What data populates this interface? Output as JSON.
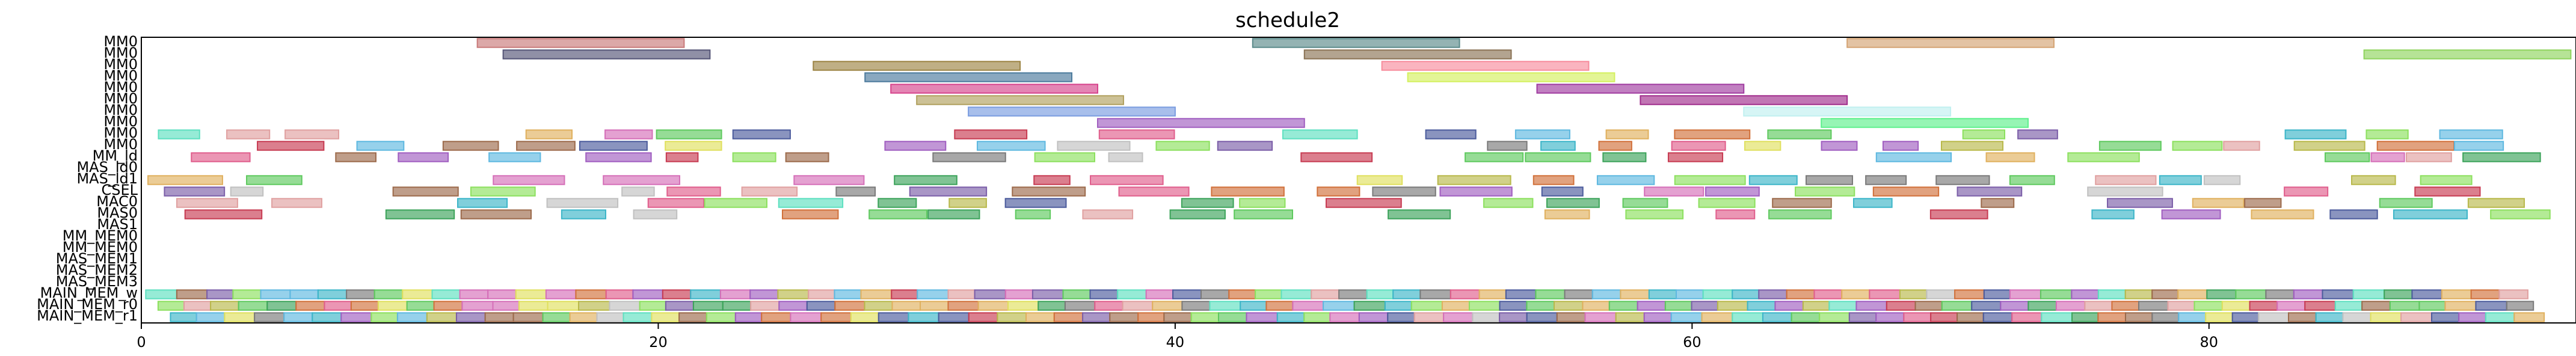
{
  "chart_data": {
    "type": "gantt",
    "title": "schedule2",
    "xlabel": "",
    "ylabel": "",
    "xlim": [
      0,
      94.2
    ],
    "xticks": [
      0,
      20,
      40,
      60,
      80
    ],
    "grid": false,
    "rows": [
      "MM0",
      "MM0",
      "MM0",
      "MM0",
      "MM0",
      "MM0",
      "MM0",
      "MM0",
      "MM0",
      "MM0",
      "MM_ld",
      "MAS_ld0",
      "MAS_ld1",
      "CSEL",
      "MAC0",
      "MAS0",
      "MAS1",
      "MM_MEM0",
      "MM_MEM0",
      "MAS_MEM1",
      "MAS_MEM2",
      "MAS_MEM3",
      "MAIN_MEM_w",
      "MAIN_MEM_r0",
      "MAIN_MEM_r1"
    ],
    "palette": [
      "#4b5b9c",
      "#d1703a",
      "#3ca35a",
      "#c73b52",
      "#7b5ea8",
      "#9c6a4b",
      "#d56fb8",
      "#7a7a7a",
      "#b8b84a",
      "#3cb5c8",
      "#5ec95e",
      "#e0e05e",
      "#5eb8e0",
      "#e05e8c",
      "#8ce05e",
      "#c0c0c0",
      "#e0b05e",
      "#a05ec0",
      "#5ee0c0",
      "#e0a0a0"
    ],
    "tasks": [
      {
        "row": 0,
        "start": 13,
        "end": 21,
        "color": "#c97a7a"
      },
      {
        "row": 0,
        "start": 43,
        "end": 51,
        "color": "#5a8a8a"
      },
      {
        "row": 0,
        "start": 66,
        "end": 74,
        "color": "#d4a373"
      },
      {
        "row": 1,
        "start": 14,
        "end": 22,
        "color": "#555577"
      },
      {
        "row": 1,
        "start": 45,
        "end": 53,
        "color": "#8a7355"
      },
      {
        "row": 1,
        "start": 86,
        "end": 94,
        "color": "#8fd45e"
      },
      {
        "row": 2,
        "start": 26,
        "end": 34,
        "color": "#9c8444"
      },
      {
        "row": 2,
        "start": 48,
        "end": 56,
        "color": "#f78c9c"
      },
      {
        "row": 3,
        "start": 28,
        "end": 36,
        "color": "#4b7a9c"
      },
      {
        "row": 3,
        "start": 49,
        "end": 57,
        "color": "#d4f05e"
      },
      {
        "row": 4,
        "start": 29,
        "end": 37,
        "color": "#d6438c"
      },
      {
        "row": 4,
        "start": 54,
        "end": 62,
        "color": "#a03ca0"
      },
      {
        "row": 5,
        "start": 30,
        "end": 38,
        "color": "#b0a05e"
      },
      {
        "row": 5,
        "start": 58,
        "end": 66,
        "color": "#a02c8c"
      },
      {
        "row": 6,
        "start": 32,
        "end": 40,
        "color": "#7a9ce0"
      },
      {
        "row": 6,
        "start": 62,
        "end": 70,
        "color": "#c0f0f0"
      },
      {
        "row": 7,
        "start": 37,
        "end": 45,
        "color": "#a05ec0"
      },
      {
        "row": 7,
        "start": 65,
        "end": 73,
        "color": "#5ef08c"
      }
    ],
    "dense_rows": [
      {
        "row": 8,
        "seed": 3
      },
      {
        "row": 9,
        "seed": 11
      },
      {
        "row": 10,
        "seed": 19
      },
      {
        "row": 12,
        "seed": 23
      },
      {
        "row": 13,
        "seed": 31
      },
      {
        "row": 14,
        "seed": 37
      },
      {
        "row": 15,
        "seed": 41
      },
      {
        "row": 22,
        "seed": 47
      },
      {
        "row": 23,
        "seed": 53
      },
      {
        "row": 24,
        "seed": 59
      }
    ]
  }
}
